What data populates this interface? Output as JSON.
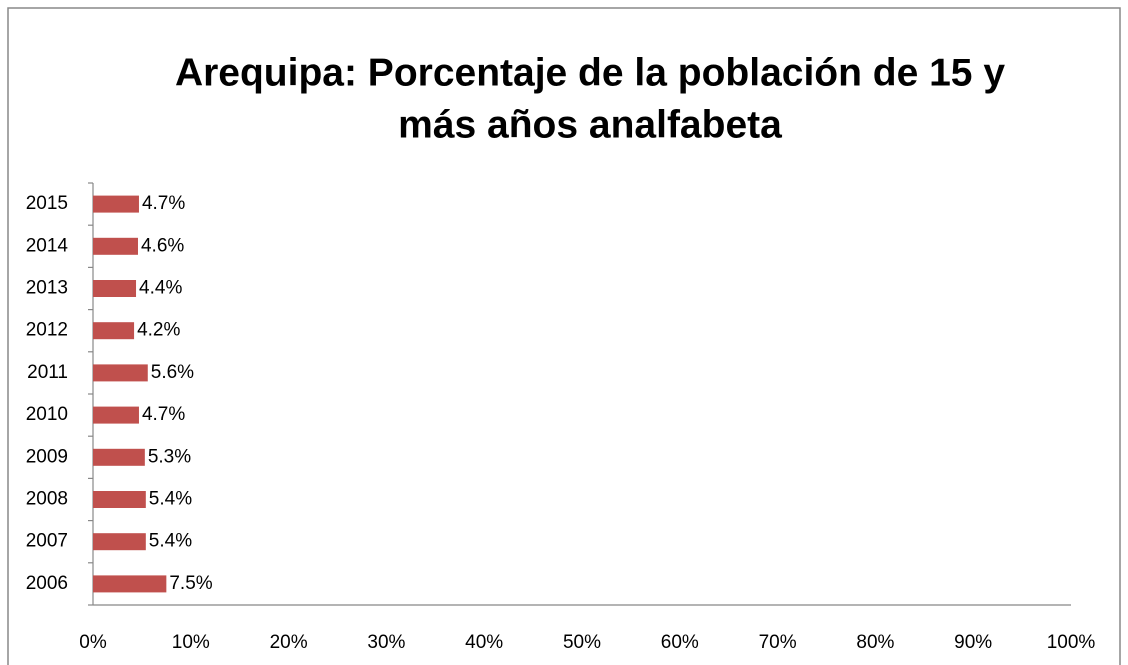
{
  "chart_data": {
    "type": "barh",
    "title": [
      "Arequipa: Porcentaje de la población de 15 y",
      "más años analfabeta"
    ],
    "categories": [
      "2006",
      "2007",
      "2008",
      "2009",
      "2010",
      "2011",
      "2012",
      "2013",
      "2014",
      "2015"
    ],
    "values": [
      7.5,
      5.4,
      5.4,
      5.3,
      4.7,
      5.6,
      4.2,
      4.4,
      4.6,
      4.7
    ],
    "value_labels": [
      "7.5%",
      "5.4%",
      "5.4%",
      "5.3%",
      "4.7%",
      "5.6%",
      "4.2%",
      "4.4%",
      "4.6%",
      "4.7%"
    ],
    "color": "#c0504d",
    "xlim": [
      0,
      100
    ],
    "xticks": [
      {
        "value": 0,
        "label": "0%"
      },
      {
        "value": 10,
        "label": "10%"
      },
      {
        "value": 20,
        "label": "20%"
      },
      {
        "value": 30,
        "label": "30%"
      },
      {
        "value": 40,
        "label": "40%"
      },
      {
        "value": 50,
        "label": "50%"
      },
      {
        "value": 60,
        "label": "60%"
      },
      {
        "value": 70,
        "label": "70%"
      },
      {
        "value": 80,
        "label": "80%"
      },
      {
        "value": 90,
        "label": "90%"
      },
      {
        "value": 100,
        "label": "100%"
      }
    ],
    "grid": false
  }
}
